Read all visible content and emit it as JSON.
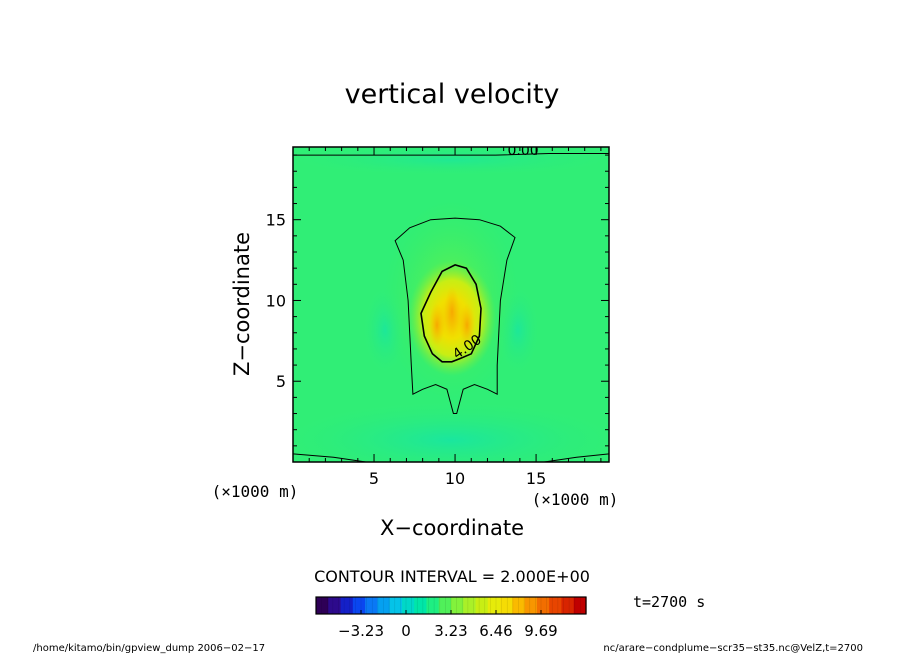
{
  "chart_data": {
    "type": "heatmap",
    "title": "vertical velocity",
    "xlabel": "X−coordinate",
    "ylabel": "Z−coordinate",
    "x_unit": "(×1000 m)",
    "y_unit": "(×1000 m)",
    "xlim": [
      0,
      19.5
    ],
    "ylim": [
      0,
      19.5
    ],
    "x_ticks": [
      5,
      10,
      15
    ],
    "y_ticks": [
      5,
      10,
      15
    ],
    "x_tick_labels": [
      "5",
      "10",
      "15"
    ],
    "y_tick_labels": [
      "5",
      "10",
      "15"
    ],
    "contour_interval_text": "CONTOUR INTERVAL = 2.000E+00",
    "contour_labels": [
      {
        "text": "0.00",
        "x": 14.2,
        "z": 19.0
      },
      {
        "text": "4.00",
        "x": 10.9,
        "z": 6.9
      }
    ],
    "contours": [
      {
        "level": 0,
        "points": [
          [
            0,
            19.0
          ],
          [
            5,
            19.0
          ],
          [
            12.5,
            19.0
          ],
          [
            15.8,
            19.1
          ],
          [
            19.5,
            19.1
          ]
        ]
      },
      {
        "level": 0,
        "points": [
          [
            0,
            0.5
          ],
          [
            2.5,
            0.3
          ],
          [
            4.5,
            0
          ]
        ]
      },
      {
        "level": 0,
        "points": [
          [
            15.5,
            0
          ],
          [
            17.5,
            0.3
          ],
          [
            19.5,
            0.5
          ]
        ]
      },
      {
        "level": 2,
        "closed": true,
        "points": [
          [
            6.3,
            13.7
          ],
          [
            7.2,
            14.5
          ],
          [
            8.5,
            15.0
          ],
          [
            10.0,
            15.1
          ],
          [
            11.5,
            15.0
          ],
          [
            12.8,
            14.6
          ],
          [
            13.7,
            13.9
          ],
          [
            13.2,
            12.5
          ],
          [
            12.8,
            10.0
          ],
          [
            12.7,
            8.0
          ],
          [
            12.6,
            6.0
          ],
          [
            12.6,
            4.2
          ],
          [
            12.0,
            4.5
          ],
          [
            11.2,
            4.8
          ],
          [
            10.5,
            4.5
          ],
          [
            10.1,
            3.0
          ],
          [
            9.9,
            3.0
          ],
          [
            9.5,
            4.5
          ],
          [
            8.8,
            4.8
          ],
          [
            8.0,
            4.5
          ],
          [
            7.4,
            4.2
          ],
          [
            7.3,
            6.0
          ],
          [
            7.2,
            8.0
          ],
          [
            7.1,
            10.0
          ],
          [
            6.8,
            12.5
          ]
        ]
      },
      {
        "level": 4,
        "closed": true,
        "points": [
          [
            8.5,
            10.5
          ],
          [
            9.2,
            11.8
          ],
          [
            10.0,
            12.2
          ],
          [
            10.7,
            12.0
          ],
          [
            11.3,
            11.0
          ],
          [
            11.6,
            9.5
          ],
          [
            11.5,
            7.8
          ],
          [
            11.0,
            6.7
          ],
          [
            10.3,
            6.4
          ],
          [
            9.8,
            6.2
          ],
          [
            9.2,
            6.2
          ],
          [
            8.6,
            6.7
          ],
          [
            8.1,
            7.8
          ],
          [
            7.9,
            9.2
          ]
        ]
      }
    ],
    "colorbar": {
      "colors": [
        "#2e0056",
        "#2d0a8c",
        "#1420c8",
        "#0a46f0",
        "#0a78f5",
        "#05a0f0",
        "#05c3e8",
        "#00d8c8",
        "#00e6a8",
        "#1eee82",
        "#50f05a",
        "#82f23c",
        "#aaf028",
        "#c8ee14",
        "#e6eb0a",
        "#f5dc05",
        "#faba00",
        "#f89600",
        "#f26e00",
        "#e84500",
        "#d82400",
        "#c00000"
      ],
      "tick_labels": [
        "−3.23",
        "0",
        "3.23",
        "6.46",
        "9.69"
      ],
      "tick_values": [
        -3.23,
        0,
        3.23,
        6.46,
        9.69
      ],
      "range": [
        -6.46,
        12.92
      ]
    },
    "time_label": "t=2700 s",
    "footer_left": "/home/kitamo/bin/gpview_dump  2006−02−17",
    "footer_right": "nc/arare−condplume−scr35−st35.nc@VelZ,t=2700"
  }
}
